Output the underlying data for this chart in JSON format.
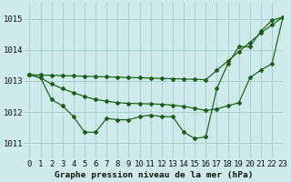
{
  "title": "Graphe pression niveau de la mer (hPa)",
  "bg_color": "#ceeaea",
  "grid_color": "#aacfcf",
  "line_color": "#1a5c1a",
  "xlim": [
    -0.5,
    23
  ],
  "ylim": [
    1010.5,
    1015.5
  ],
  "yticks": [
    1011,
    1012,
    1013,
    1014,
    1015
  ],
  "xticks": [
    0,
    1,
    2,
    3,
    4,
    5,
    6,
    7,
    8,
    9,
    10,
    11,
    12,
    13,
    14,
    15,
    16,
    17,
    18,
    19,
    20,
    21,
    22,
    23
  ],
  "series_main": [
    1013.2,
    1013.1,
    1012.4,
    1012.2,
    1011.85,
    1011.35,
    1011.35,
    1011.8,
    1011.75,
    1011.75,
    1011.85,
    1011.9,
    1011.85,
    1011.85,
    1011.35,
    1011.15,
    1011.2,
    1012.75,
    1013.55,
    1014.1,
    1014.1,
    1014.6,
    1014.95,
    1015.05
  ],
  "series_hi": [
    1013.2,
    1013.19,
    1013.18,
    1013.17,
    1013.16,
    1013.15,
    1013.14,
    1013.13,
    1013.12,
    1013.11,
    1013.1,
    1013.09,
    1013.08,
    1013.07,
    1013.06,
    1013.05,
    1013.04,
    1013.34,
    1013.64,
    1013.94,
    1014.24,
    1014.54,
    1014.8,
    1015.05
  ],
  "series_lo": [
    1013.2,
    1013.1,
    1012.9,
    1012.75,
    1012.62,
    1012.5,
    1012.4,
    1012.35,
    1012.3,
    1012.28,
    1012.27,
    1012.26,
    1012.25,
    1012.22,
    1012.18,
    1012.12,
    1012.05,
    1012.1,
    1012.2,
    1012.3,
    1013.1,
    1013.35,
    1013.55,
    1015.05
  ],
  "xlabel_fontsize": 6.5,
  "ylabel_fontsize": 6.5,
  "title_fontsize": 6.8
}
